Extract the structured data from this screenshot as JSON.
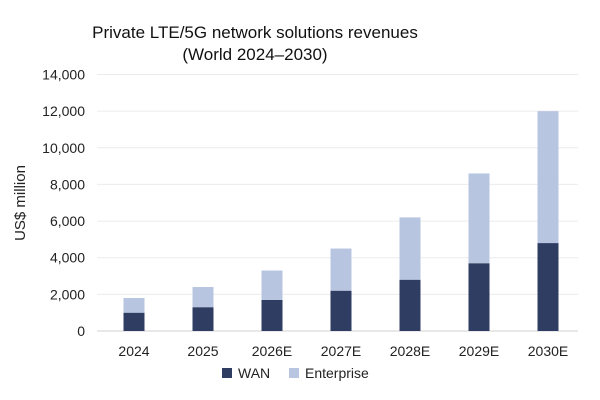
{
  "chart_data": {
    "type": "bar",
    "stacked": true,
    "title": [
      "Private LTE/5G network solutions revenues",
      "(World 2024–2030)"
    ],
    "xlabel": "",
    "ylabel": "US$ million",
    "ylim": [
      0,
      14000
    ],
    "yticks": [
      "0",
      "2,000",
      "4,000",
      "6,000",
      "8,000",
      "10,000",
      "12,000",
      "14,000"
    ],
    "ytick_values": [
      0,
      2000,
      4000,
      6000,
      8000,
      10000,
      12000,
      14000
    ],
    "grid": true,
    "legend_position": "bottom",
    "categories": [
      "2024",
      "2025",
      "2026E",
      "2027E",
      "2028E",
      "2029E",
      "2030E"
    ],
    "series": [
      {
        "name": "WAN",
        "color": "#303d63",
        "values": [
          1000,
          1300,
          1700,
          2200,
          2800,
          3700,
          4800
        ]
      },
      {
        "name": "Enterprise",
        "color": "#b8c5e1",
        "values": [
          800,
          1100,
          1600,
          2300,
          3400,
          4900,
          7200
        ]
      }
    ]
  }
}
